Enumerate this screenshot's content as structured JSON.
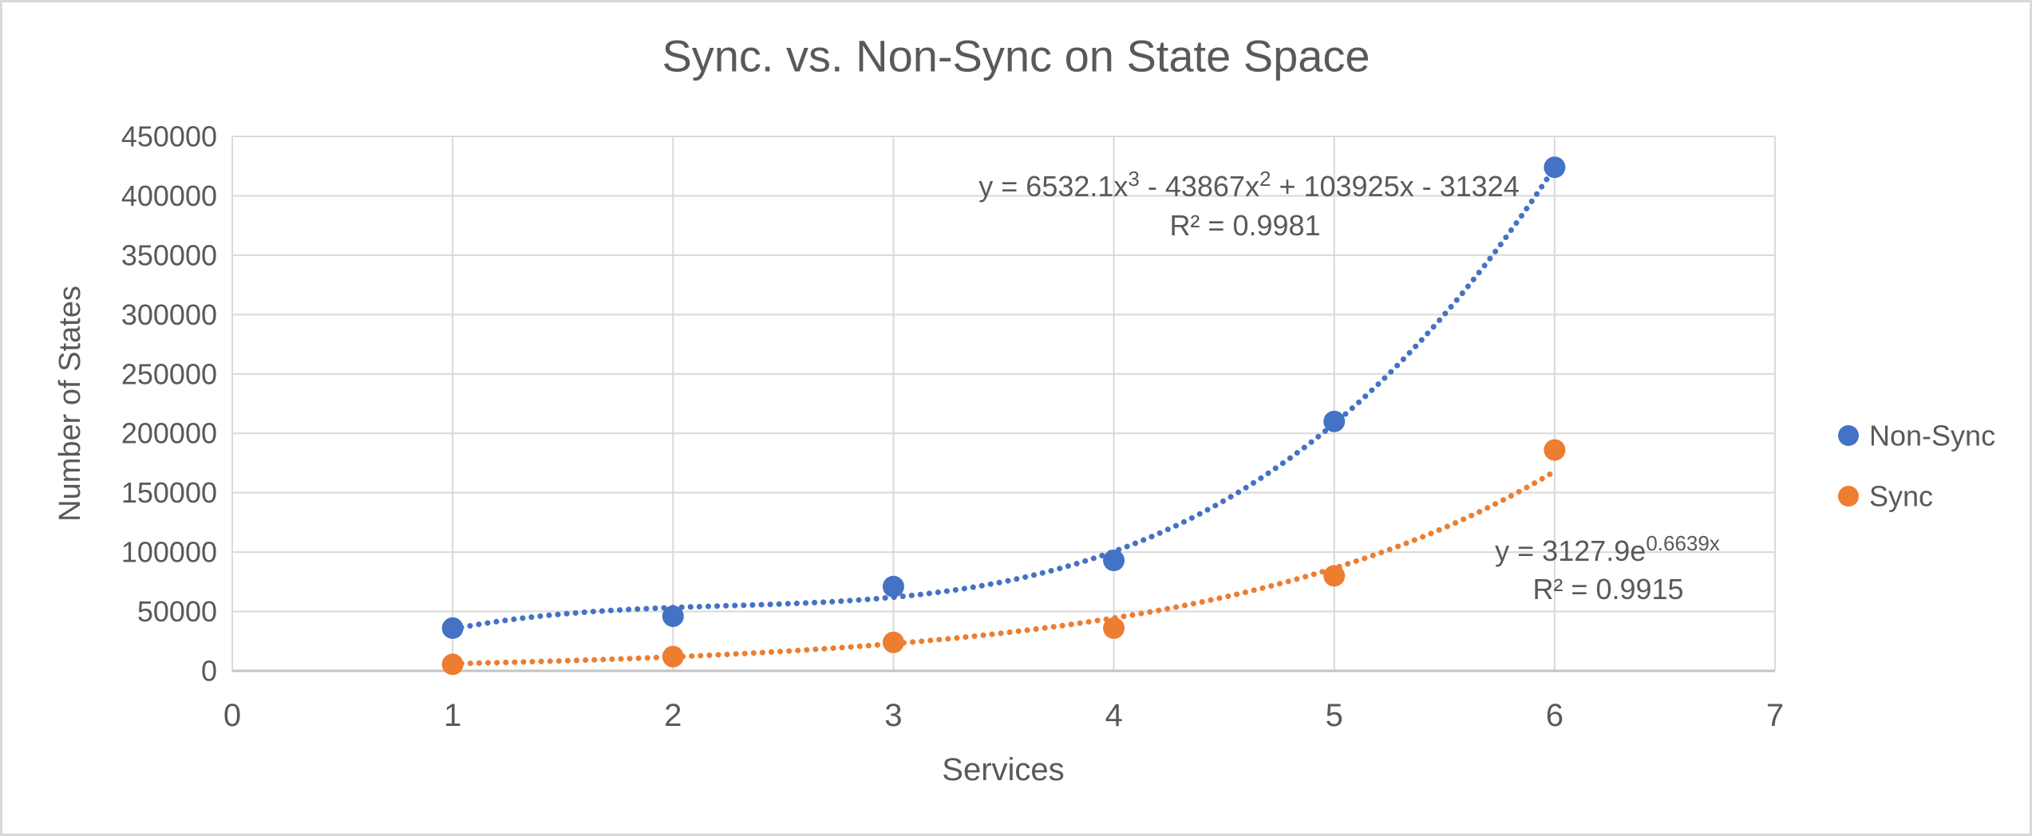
{
  "chart_data": {
    "type": "scatter",
    "title": "Sync. vs. Non-Sync on State Space",
    "xlabel": "Services",
    "ylabel": "Number of States",
    "xlim": [
      0,
      7
    ],
    "ylim": [
      0,
      450000
    ],
    "x_ticks": [
      0,
      1,
      2,
      3,
      4,
      5,
      6,
      7
    ],
    "y_ticks": [
      0,
      50000,
      100000,
      150000,
      200000,
      250000,
      300000,
      350000,
      400000,
      450000
    ],
    "grid": true,
    "legend_position": "right",
    "colors": {
      "text": "#595959",
      "gridline": "#D9D9D9",
      "axis_line": "#C3C3C3",
      "background": "#FFFFFF",
      "border": "#D9D9D9"
    },
    "series": [
      {
        "name": "Non-Sync",
        "color": "#4472C4",
        "x": [
          1,
          2,
          3,
          4,
          5,
          6
        ],
        "y": [
          36000,
          46000,
          71000,
          93000,
          210000,
          424000
        ],
        "trendline": {
          "kind": "polynomial",
          "coeffs": [
            -31324,
            103925,
            -43867,
            6532.1
          ],
          "range": [
            1,
            6
          ],
          "equation": "y = 6532.1x^{3} - 43867x^{2} + 103925x - 31324",
          "r_squared": "R² = 0.9981"
        }
      },
      {
        "name": "Sync",
        "color": "#ED7D31",
        "x": [
          1,
          2,
          3,
          4,
          5,
          6
        ],
        "y": [
          5500,
          12000,
          24000,
          36000,
          80000,
          186000
        ],
        "trendline": {
          "kind": "exponential",
          "a": 3127.9,
          "b": 0.6639,
          "range": [
            1,
            6
          ],
          "equation": "y = 3127.9e^{0.6639x}",
          "r_squared": "R² = 0.9915"
        }
      }
    ]
  }
}
